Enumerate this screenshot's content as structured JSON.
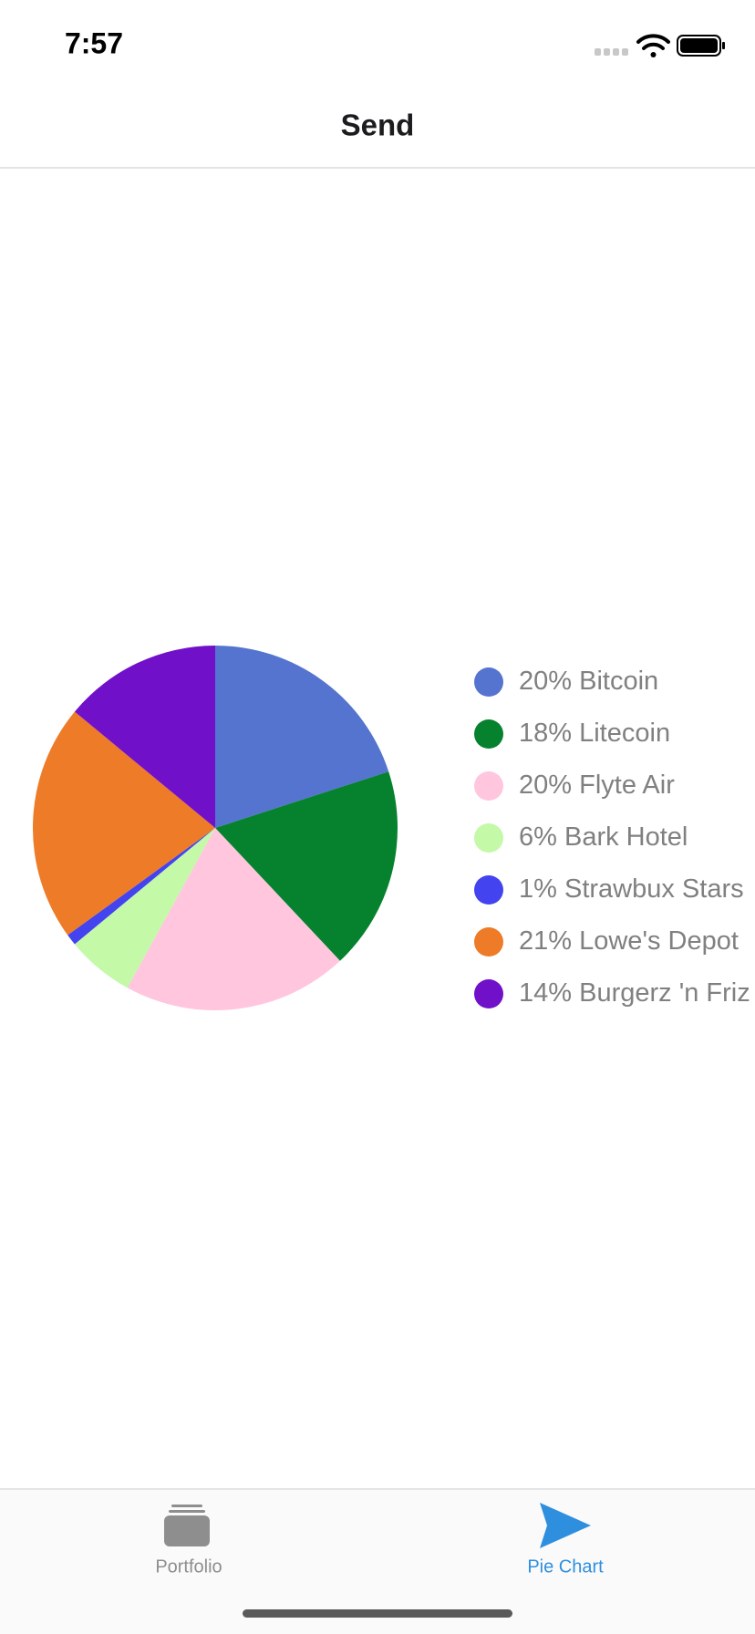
{
  "status_bar": {
    "time": "7:57"
  },
  "nav": {
    "title": "Send"
  },
  "chart_data": {
    "type": "pie",
    "categories": [
      "Bitcoin",
      "Litecoin",
      "Flyte Air",
      "Bark Hotel",
      "Strawbux Stars",
      "Lowe's Depot",
      "Burgerz 'n Friz"
    ],
    "values": [
      20,
      18,
      20,
      6,
      1,
      21,
      14
    ],
    "value_labels": [
      "20%",
      "18%",
      "20%",
      "6%",
      "1%",
      "21%",
      "14%"
    ],
    "colors": [
      "#5574cf",
      "#06822f",
      "#ffc6de",
      "#c4f9a8",
      "#4343ef",
      "#ee7b27",
      "#7110c9"
    ],
    "legend": "right"
  },
  "tab_bar": {
    "tabs": [
      {
        "label": "Portfolio"
      },
      {
        "label": "Pie Chart"
      }
    ]
  }
}
